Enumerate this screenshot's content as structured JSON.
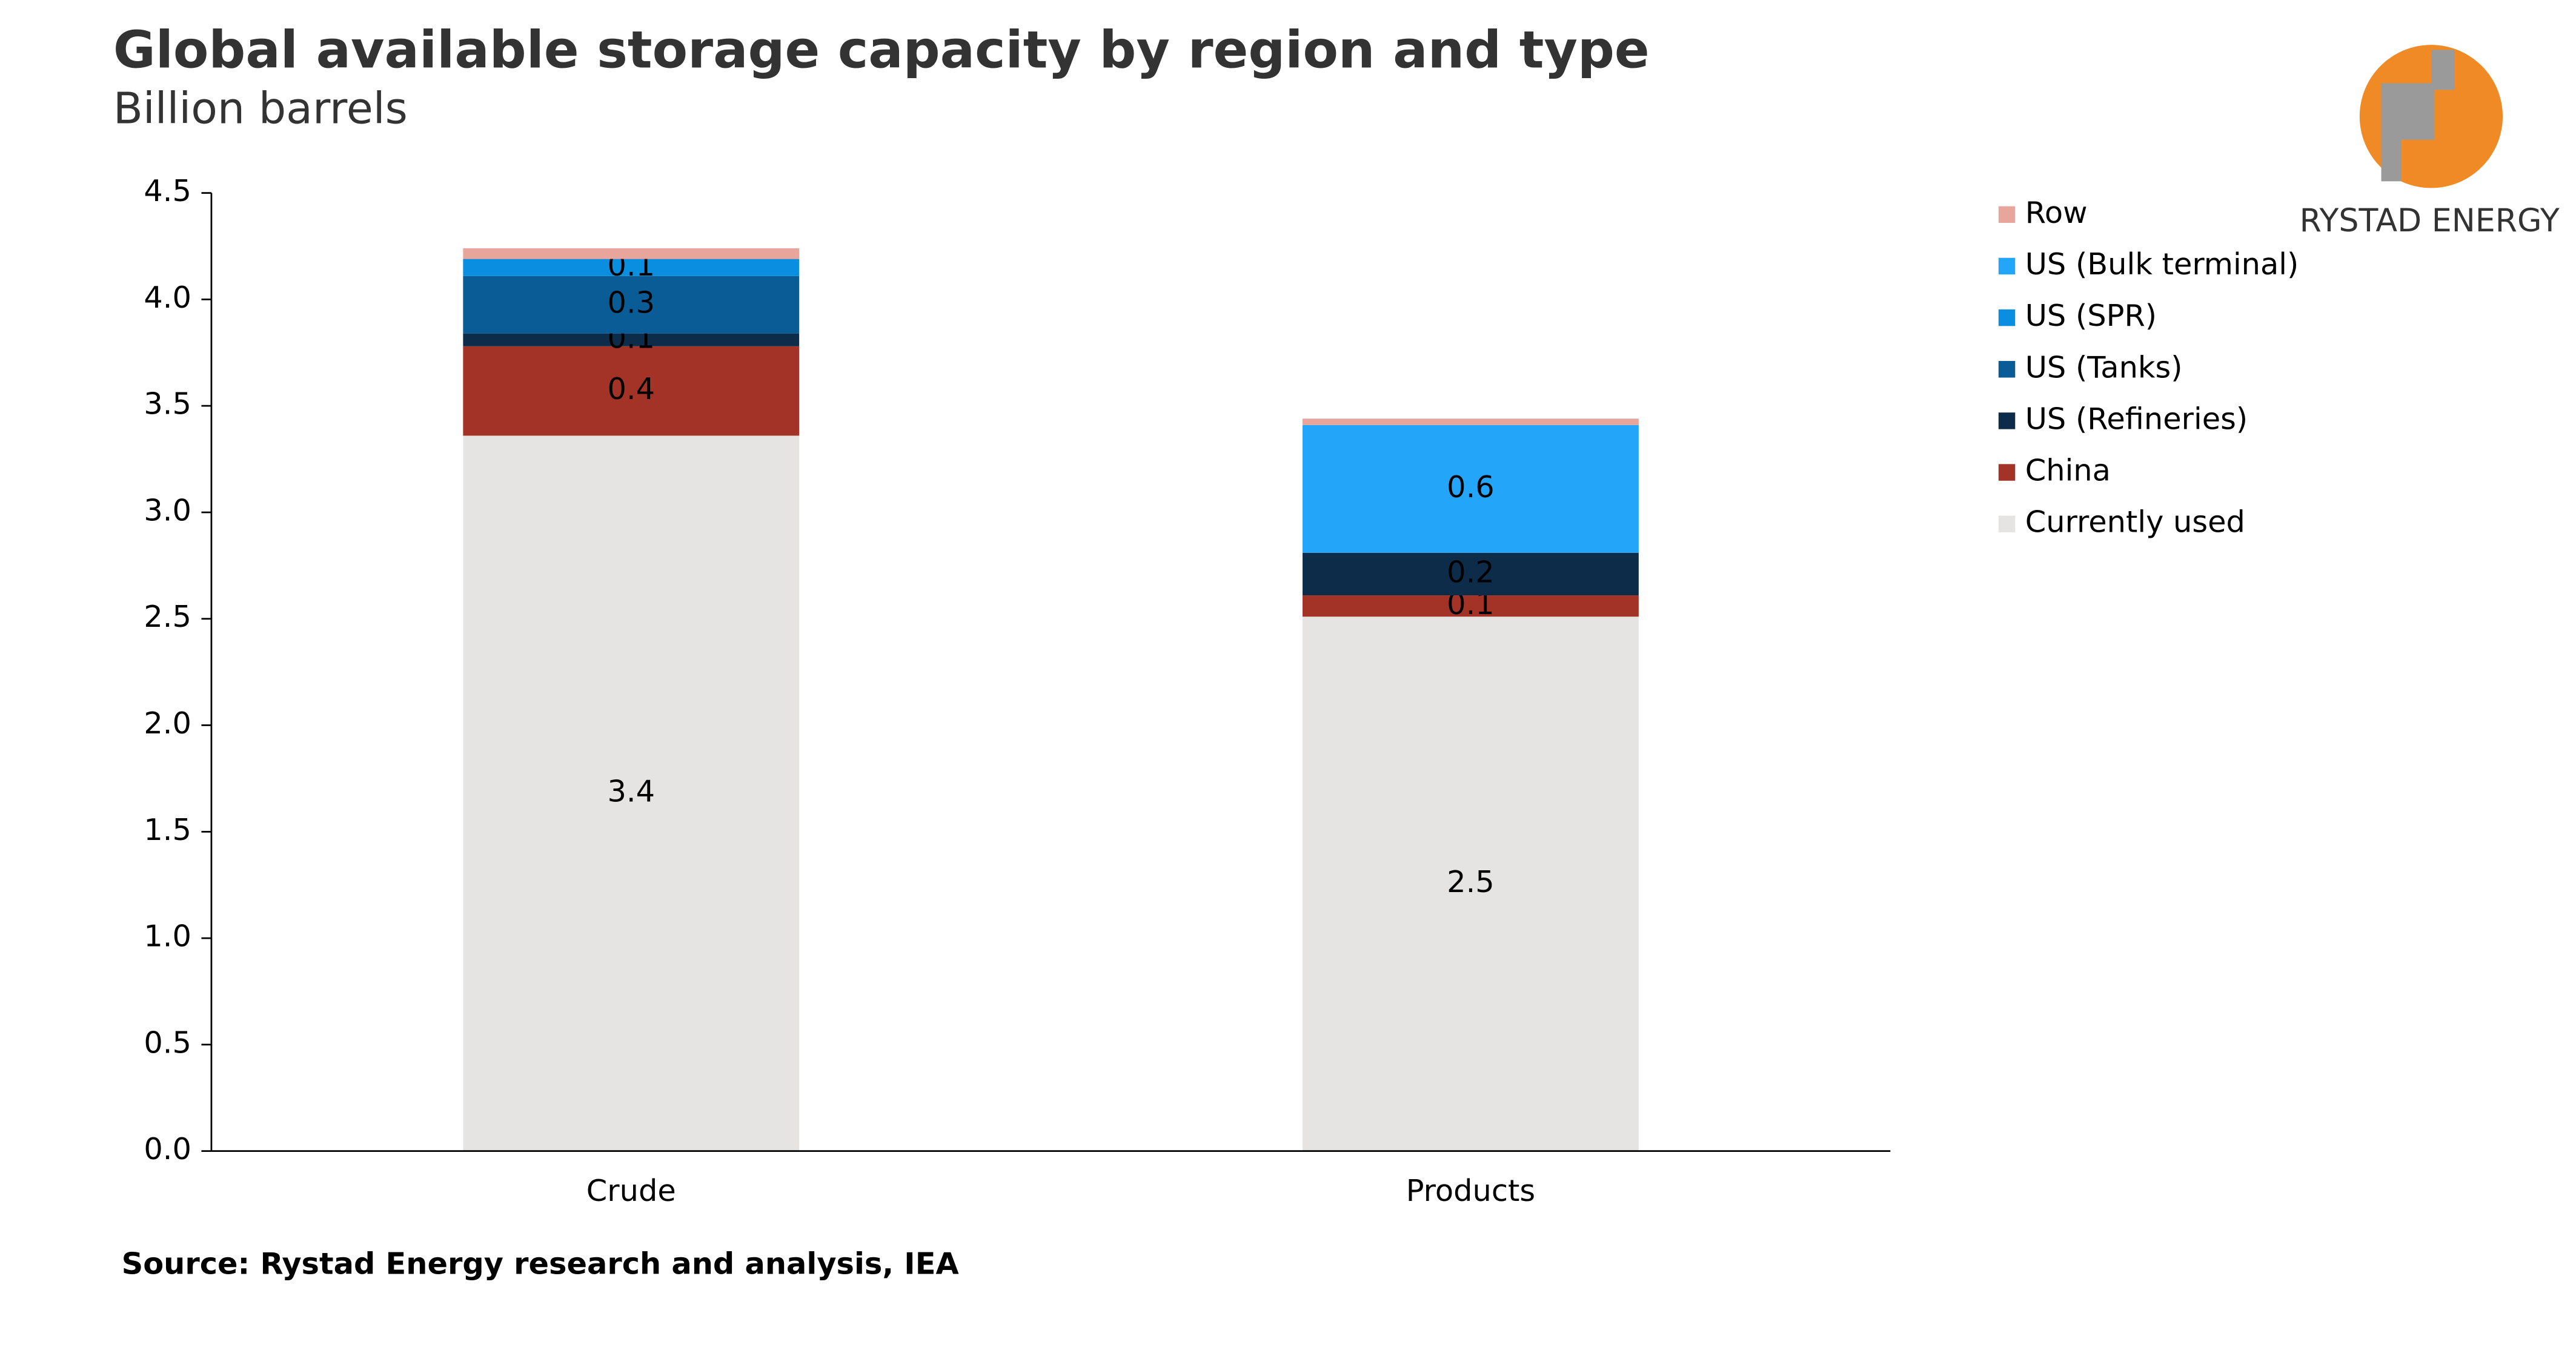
{
  "chart_data": {
    "type": "stacked_bar",
    "title": "Global available storage capacity by region and type",
    "subtitle": "Billion barrels",
    "source": "Source: Rystad Energy research and analysis, IEA",
    "logo": "RYSTAD ENERGY",
    "categories": [
      "Crude",
      "Products"
    ],
    "series": [
      {
        "name": "Currently used",
        "color": "#e6e3e3",
        "values": [
          3.36,
          2.51
        ],
        "value_labels": [
          "3.4",
          "2.5"
        ]
      },
      {
        "name": "China",
        "color": "#a33327",
        "values": [
          0.42,
          0.1
        ],
        "value_labels": [
          "0.4",
          "0.1"
        ]
      },
      {
        "name": "US (Refineries)",
        "color": "#0d2c4a",
        "values": [
          0.06,
          0.2
        ],
        "value_labels": [
          "0.1",
          "0.2"
        ]
      },
      {
        "name": "US (Tanks)",
        "color": "#0a5c97",
        "values": [
          0.27,
          0
        ],
        "value_labels": [
          "0.3",
          null
        ]
      },
      {
        "name": "US (SPR)",
        "color": "#0a8fe0",
        "values": [
          0.08,
          0
        ],
        "value_labels": [
          "0.1",
          null
        ]
      },
      {
        "name": "US (Bulk terminal)",
        "color": "#23a6fa",
        "values": [
          0,
          0.6
        ],
        "value_labels": [
          null,
          "0.6"
        ]
      },
      {
        "name": "Row",
        "color": "#e8a59c",
        "values": [
          0.05,
          0.03
        ]
      }
    ],
    "ylim": [
      0,
      4.5
    ],
    "yticks": [
      {
        "value": 0,
        "label": "0.0"
      },
      0.5,
      {
        "value": 1,
        "label": "1.0"
      },
      1.5,
      {
        "value": 2,
        "label": "2.0"
      },
      2.5,
      {
        "value": 3,
        "label": "3.0"
      },
      3.5,
      {
        "value": 4,
        "label": "4.0"
      },
      4.5
    ]
  }
}
